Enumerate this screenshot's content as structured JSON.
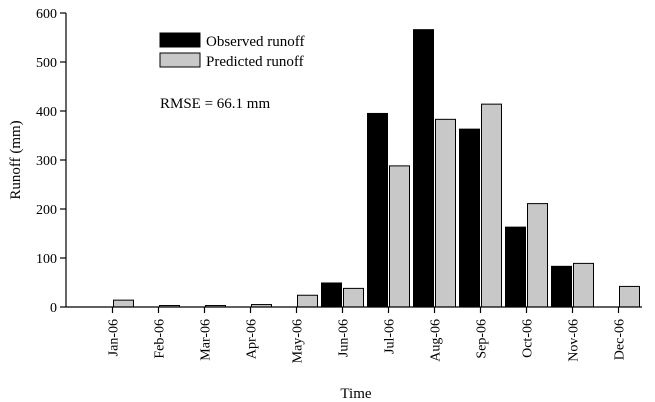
{
  "chart_data": {
    "type": "bar",
    "title": "",
    "xlabel": "Time",
    "ylabel": "Runoff (mm)",
    "ylim": [
      0,
      600
    ],
    "yticks": [
      0,
      100,
      200,
      300,
      400,
      500,
      600
    ],
    "grid": false,
    "legend_position": "top-left",
    "annotation": "RMSE = 66.1 mm",
    "categories": [
      "Jan-06",
      "Feb-06",
      "Mar-06",
      "Apr-06",
      "May-06",
      "Jun-06",
      "Jul-06",
      "Aug-06",
      "Sep-06",
      "Oct-06",
      "Nov-06",
      "Dec-06"
    ],
    "series": [
      {
        "name": "Observed runoff",
        "color": "#000000",
        "values": [
          null,
          null,
          null,
          null,
          null,
          49,
          395,
          566,
          363,
          163,
          83,
          null
        ]
      },
      {
        "name": "Predicted runoff",
        "color": "#c8c8c8",
        "values": [
          14,
          3,
          3,
          5,
          24,
          38,
          288,
          383,
          414,
          211,
          89,
          42
        ]
      }
    ]
  }
}
